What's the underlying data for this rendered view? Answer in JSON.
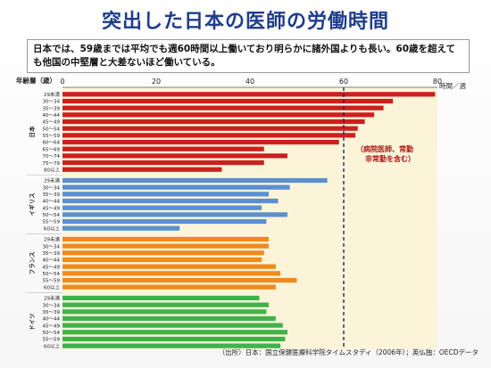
{
  "title": "突出した日本の医師の労働時間",
  "description": "日本では、59歳までは平均でも週60時間以上働いており明らかに諸外国よりも長い。60歳を超えても他国の中堅層と大差ないほど働いている。",
  "source": "（出所）日本：国立保健医療科学院タイムスタディ（2006年）；英仏独：OECDデータ",
  "colors": {
    "japan": "#cc1f1f",
    "uk": "#5b8fd0",
    "france": "#ef8a1c",
    "germany": "#3fb34a",
    "plot_bg": "#fbf4d8",
    "ref_line": "#1a2a6c"
  },
  "chart_data": {
    "type": "bar",
    "orientation": "horizontal",
    "title": "突出した日本の医師の労働時間",
    "xlabel": "時間／週",
    "ylabel": "年齢層（歳）",
    "xlim": [
      0,
      80
    ],
    "xticks": [
      0,
      20,
      40,
      60,
      80
    ],
    "reference_line": {
      "x": 60,
      "style": "dashed"
    },
    "annotation": [
      "（病院医師、常勤",
      "非常勤を含む）"
    ],
    "groups": [
      {
        "name": "日本",
        "color_key": "japan",
        "categories": [
          "29未満",
          "30～34",
          "35～39",
          "40～44",
          "45～49",
          "50～54",
          "55～59",
          "60～64",
          "65～69",
          "70～74",
          "75～79",
          "80以上"
        ],
        "values": [
          79.5,
          70.5,
          68.5,
          66.5,
          64.5,
          63,
          62.5,
          59,
          43,
          48,
          43,
          34
        ]
      },
      {
        "name": "イギリス",
        "color_key": "uk",
        "categories": [
          "29未満",
          "30～34",
          "35～39",
          "40～44",
          "45～49",
          "50～54",
          "55～59",
          "60以上"
        ],
        "values": [
          56.5,
          48.5,
          44,
          46,
          42.5,
          48,
          43.5,
          25
        ]
      },
      {
        "name": "フランス",
        "color_key": "france",
        "categories": [
          "29未満",
          "30～34",
          "35～39",
          "40～44",
          "45～49",
          "50～54",
          "55～59",
          "60以上"
        ],
        "values": [
          44,
          44,
          43,
          42.5,
          45.5,
          46.5,
          50,
          45.5
        ]
      },
      {
        "name": "ドイツ",
        "color_key": "germany",
        "categories": [
          "29未満",
          "30～34",
          "35～39",
          "40～44",
          "45～49",
          "50～54",
          "55～59",
          "60以上"
        ],
        "values": [
          42,
          44,
          43.5,
          45.5,
          47,
          48,
          47.5,
          46.5
        ]
      }
    ]
  }
}
